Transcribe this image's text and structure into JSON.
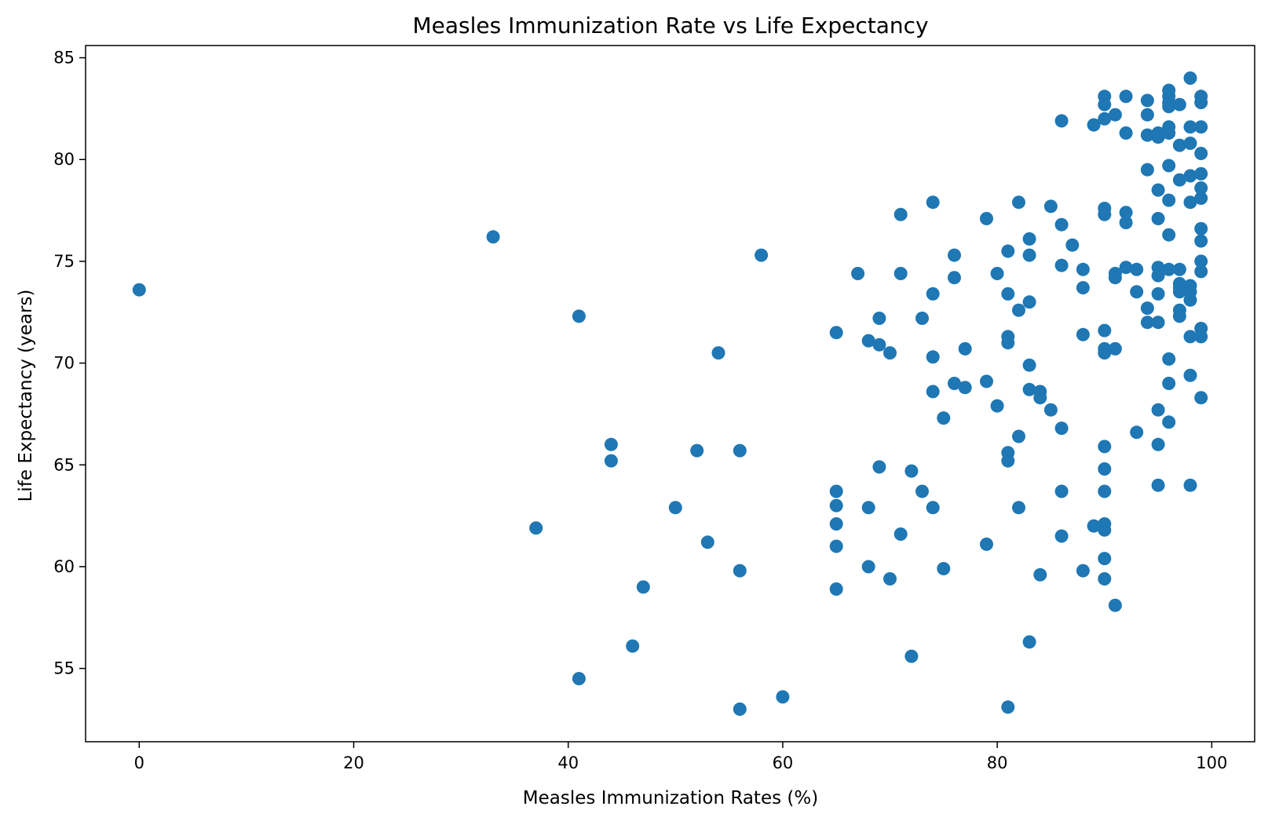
{
  "chart_data": {
    "type": "scatter",
    "title": "Measles Immunization Rate vs Life Expectancy",
    "xlabel": "Measles Immunization Rates (%)",
    "ylabel": "Life Expectancy (years)",
    "xlim": [
      -5,
      104
    ],
    "ylim": [
      51.4,
      85.6
    ],
    "xticks": [
      0,
      20,
      40,
      60,
      80,
      100
    ],
    "yticks": [
      55,
      60,
      65,
      70,
      75,
      80,
      85
    ],
    "grid": false,
    "legend": "none",
    "colors": {
      "marker": "#1f77b4"
    },
    "points": [
      [
        0,
        73.6
      ],
      [
        33,
        76.2
      ],
      [
        37,
        61.9
      ],
      [
        41,
        72.3
      ],
      [
        41,
        54.5
      ],
      [
        44,
        66.0
      ],
      [
        44,
        65.2
      ],
      [
        46,
        56.1
      ],
      [
        47,
        59.0
      ],
      [
        50,
        62.9
      ],
      [
        52,
        65.7
      ],
      [
        53,
        61.2
      ],
      [
        54,
        70.5
      ],
      [
        56,
        65.7
      ],
      [
        56,
        59.8
      ],
      [
        56,
        53.0
      ],
      [
        58,
        75.3
      ],
      [
        60,
        53.6
      ],
      [
        65,
        71.5
      ],
      [
        65,
        63.7
      ],
      [
        65,
        63.0
      ],
      [
        65,
        62.1
      ],
      [
        65,
        61.0
      ],
      [
        65,
        58.9
      ],
      [
        67,
        74.4
      ],
      [
        68,
        71.1
      ],
      [
        68,
        62.9
      ],
      [
        68,
        60.0
      ],
      [
        69,
        72.2
      ],
      [
        69,
        70.9
      ],
      [
        69,
        64.9
      ],
      [
        70,
        70.5
      ],
      [
        70,
        59.4
      ],
      [
        71,
        77.3
      ],
      [
        71,
        74.4
      ],
      [
        71,
        61.6
      ],
      [
        72,
        64.7
      ],
      [
        72,
        55.6
      ],
      [
        73,
        72.2
      ],
      [
        73,
        63.7
      ],
      [
        74,
        77.9
      ],
      [
        74,
        73.4
      ],
      [
        74,
        70.3
      ],
      [
        74,
        68.6
      ],
      [
        74,
        62.9
      ],
      [
        75,
        67.3
      ],
      [
        75,
        59.9
      ],
      [
        76,
        75.3
      ],
      [
        76,
        74.2
      ],
      [
        76,
        69.0
      ],
      [
        77,
        70.7
      ],
      [
        77,
        68.8
      ],
      [
        79,
        77.1
      ],
      [
        79,
        69.1
      ],
      [
        79,
        61.1
      ],
      [
        80,
        74.4
      ],
      [
        80,
        67.9
      ],
      [
        81,
        75.5
      ],
      [
        81,
        73.4
      ],
      [
        81,
        71.3
      ],
      [
        81,
        71.0
      ],
      [
        81,
        65.6
      ],
      [
        81,
        65.2
      ],
      [
        81,
        53.1
      ],
      [
        82,
        77.9
      ],
      [
        82,
        72.6
      ],
      [
        82,
        66.4
      ],
      [
        82,
        62.9
      ],
      [
        83,
        76.1
      ],
      [
        83,
        75.3
      ],
      [
        83,
        73.0
      ],
      [
        83,
        69.9
      ],
      [
        83,
        68.7
      ],
      [
        83,
        56.3
      ],
      [
        84,
        68.6
      ],
      [
        84,
        68.3
      ],
      [
        84,
        59.6
      ],
      [
        85,
        77.7
      ],
      [
        85,
        67.7
      ],
      [
        86,
        81.9
      ],
      [
        86,
        76.8
      ],
      [
        86,
        74.8
      ],
      [
        86,
        66.8
      ],
      [
        86,
        63.7
      ],
      [
        86,
        61.5
      ],
      [
        87,
        75.8
      ],
      [
        88,
        74.6
      ],
      [
        88,
        73.7
      ],
      [
        88,
        71.4
      ],
      [
        88,
        59.8
      ],
      [
        89,
        81.7
      ],
      [
        89,
        62.0
      ],
      [
        90,
        83.1
      ],
      [
        90,
        82.7
      ],
      [
        90,
        82.0
      ],
      [
        90,
        77.6
      ],
      [
        90,
        77.3
      ],
      [
        90,
        71.6
      ],
      [
        90,
        70.7
      ],
      [
        90,
        70.5
      ],
      [
        90,
        65.9
      ],
      [
        90,
        64.8
      ],
      [
        90,
        63.7
      ],
      [
        90,
        62.1
      ],
      [
        90,
        61.8
      ],
      [
        90,
        60.4
      ],
      [
        90,
        59.4
      ],
      [
        91,
        82.2
      ],
      [
        91,
        74.4
      ],
      [
        91,
        74.2
      ],
      [
        91,
        70.7
      ],
      [
        91,
        58.1
      ],
      [
        92,
        83.1
      ],
      [
        92,
        81.3
      ],
      [
        92,
        77.4
      ],
      [
        92,
        76.9
      ],
      [
        92,
        74.7
      ],
      [
        93,
        74.6
      ],
      [
        93,
        73.5
      ],
      [
        93,
        66.6
      ],
      [
        94,
        82.9
      ],
      [
        94,
        82.2
      ],
      [
        94,
        81.2
      ],
      [
        94,
        79.5
      ],
      [
        94,
        72.7
      ],
      [
        94,
        72.0
      ],
      [
        95,
        81.3
      ],
      [
        95,
        81.1
      ],
      [
        95,
        78.5
      ],
      [
        95,
        77.1
      ],
      [
        95,
        74.7
      ],
      [
        95,
        74.3
      ],
      [
        95,
        73.4
      ],
      [
        95,
        72.0
      ],
      [
        95,
        67.7
      ],
      [
        95,
        66.0
      ],
      [
        95,
        64.0
      ],
      [
        96,
        83.4
      ],
      [
        96,
        83.1
      ],
      [
        96,
        82.8
      ],
      [
        96,
        82.6
      ],
      [
        96,
        81.6
      ],
      [
        96,
        81.3
      ],
      [
        96,
        79.7
      ],
      [
        96,
        78.0
      ],
      [
        96,
        76.3
      ],
      [
        96,
        74.6
      ],
      [
        96,
        70.2
      ],
      [
        96,
        69.0
      ],
      [
        96,
        67.1
      ],
      [
        97,
        82.7
      ],
      [
        97,
        80.7
      ],
      [
        97,
        79.0
      ],
      [
        97,
        74.6
      ],
      [
        97,
        73.9
      ],
      [
        97,
        73.7
      ],
      [
        97,
        73.5
      ],
      [
        97,
        72.6
      ],
      [
        97,
        72.3
      ],
      [
        98,
        84.0
      ],
      [
        98,
        81.6
      ],
      [
        98,
        80.8
      ],
      [
        98,
        79.2
      ],
      [
        98,
        77.9
      ],
      [
        98,
        73.8
      ],
      [
        98,
        73.5
      ],
      [
        98,
        73.1
      ],
      [
        98,
        71.3
      ],
      [
        98,
        69.4
      ],
      [
        98,
        64.0
      ],
      [
        99,
        83.1
      ],
      [
        99,
        82.8
      ],
      [
        99,
        81.6
      ],
      [
        99,
        80.3
      ],
      [
        99,
        79.3
      ],
      [
        99,
        78.6
      ],
      [
        99,
        78.1
      ],
      [
        99,
        76.6
      ],
      [
        99,
        76.0
      ],
      [
        99,
        75.0
      ],
      [
        99,
        74.5
      ],
      [
        99,
        71.7
      ],
      [
        99,
        71.3
      ],
      [
        99,
        68.3
      ]
    ]
  }
}
